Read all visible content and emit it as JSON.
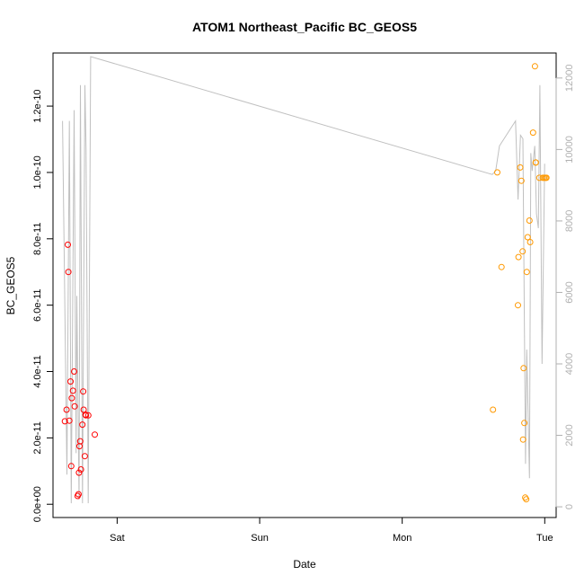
{
  "colors": {
    "left_series": "#ff0000",
    "right_series": "#ff9900",
    "altitude_line": "#c0c0c0",
    "right_axis": "#b0b0b0",
    "axes": "#000000",
    "background": "#ffffff"
  },
  "chart_data": {
    "type": "scatter",
    "title": "ATOM1 Northeast_Pacific BC_GEOS5",
    "xlabel": "Date",
    "ylabel": "BC_GEOS5",
    "grid": false,
    "x_unit": "days from Sat 00:00",
    "xlim": [
      -0.45,
      3.08
    ],
    "ylim": [
      -4e-12,
      1.36e-10
    ],
    "y2lim": [
      -300,
      12700
    ],
    "x_ticks": [
      {
        "label": "Sat",
        "value": 0
      },
      {
        "label": "Sun",
        "value": 1
      },
      {
        "label": "Mon",
        "value": 2
      },
      {
        "label": "Tue",
        "value": 3
      }
    ],
    "y_ticks": [
      {
        "label": "0.0e+00",
        "value": 0
      },
      {
        "label": "2.0e-11",
        "value": 2e-11
      },
      {
        "label": "4.0e-11",
        "value": 4e-11
      },
      {
        "label": "6.0e-11",
        "value": 6e-11
      },
      {
        "label": "8.0e-11",
        "value": 8e-11
      },
      {
        "label": "1.0e-10",
        "value": 1e-10
      },
      {
        "label": "1.2e-10",
        "value": 1.2e-10
      }
    ],
    "y2_ticks": [
      {
        "label": "0",
        "value": 0
      },
      {
        "label": "2000",
        "value": 2000
      },
      {
        "label": "4000",
        "value": 4000
      },
      {
        "label": "6000",
        "value": 6000
      },
      {
        "label": "8000",
        "value": 8000
      },
      {
        "label": "10000",
        "value": 10000
      },
      {
        "label": "12000",
        "value": 12000
      }
    ],
    "series": [
      {
        "color": "#ff0000",
        "x": [
          -0.367,
          -0.355,
          -0.346,
          -0.342,
          -0.335,
          -0.327,
          -0.322,
          -0.318,
          -0.31,
          -0.302,
          -0.298,
          -0.277,
          -0.271,
          -0.268,
          -0.264,
          -0.259,
          -0.254,
          -0.244,
          -0.238,
          -0.235,
          -0.227,
          -0.222,
          -0.219,
          -0.202,
          -0.157
        ],
        "y": [
          2.5e-11,
          2.85e-11,
          7.82e-11,
          7e-11,
          2.52e-11,
          3.7e-11,
          1.15e-11,
          3.2e-11,
          3.42e-11,
          4e-11,
          2.95e-11,
          2.5e-12,
          3e-12,
          9.5e-12,
          1.75e-11,
          1.9e-11,
          1.05e-11,
          2.4e-11,
          3.4e-11,
          2.85e-11,
          1.45e-11,
          2.7e-11,
          2.68e-11,
          2.68e-11,
          2.1e-11
        ]
      },
      {
        "color": "#ff9900",
        "x": [
          2.637,
          2.667,
          2.697,
          2.812,
          2.816,
          2.828,
          2.836,
          2.845,
          2.848,
          2.852,
          2.857,
          2.863,
          2.87,
          2.874,
          2.88,
          2.893,
          2.898,
          2.918,
          2.931,
          2.937,
          2.937,
          2.962,
          2.987,
          2.996,
          3.005,
          3.012
        ],
        "y": [
          2.85e-11,
          1e-10,
          7.15e-11,
          6e-11,
          7.45e-11,
          1.015e-10,
          9.75e-11,
          7.62e-11,
          1.95e-11,
          4.1e-11,
          2.45e-11,
          2e-12,
          1.5e-12,
          7e-11,
          8.05e-11,
          8.55e-11,
          7.9e-11,
          1.12e-10,
          1.32e-10,
          1.03e-10,
          1.03e-10,
          9.84e-11,
          9.84e-11,
          9.84e-11,
          9.84e-11,
          9.84e-11
        ]
      }
    ],
    "secondary_axis_series": {
      "axis": "right",
      "style": "line",
      "color": "#c0c0c0",
      "x": [
        -0.383,
        -0.352,
        -0.335,
        -0.322,
        -0.302,
        -0.288,
        -0.283,
        -0.267,
        -0.258,
        -0.243,
        -0.226,
        -0.218,
        -0.203,
        -0.186,
        2.632,
        2.656,
        2.682,
        2.795,
        2.813,
        2.83,
        2.847,
        2.865,
        2.874,
        2.893,
        2.902,
        2.912,
        2.93,
        2.942,
        2.955,
        2.966,
        2.981,
        2.999
      ],
      "y": [
        10800,
        900,
        10800,
        100,
        11100,
        1500,
        5900,
        200,
        11800,
        100,
        11800,
        10000,
        100,
        12600,
        9300,
        9400,
        10100,
        10800,
        8600,
        10400,
        10300,
        1200,
        4400,
        800,
        9900,
        9400,
        10100,
        8200,
        7800,
        11800,
        4000,
        9600
      ]
    }
  }
}
